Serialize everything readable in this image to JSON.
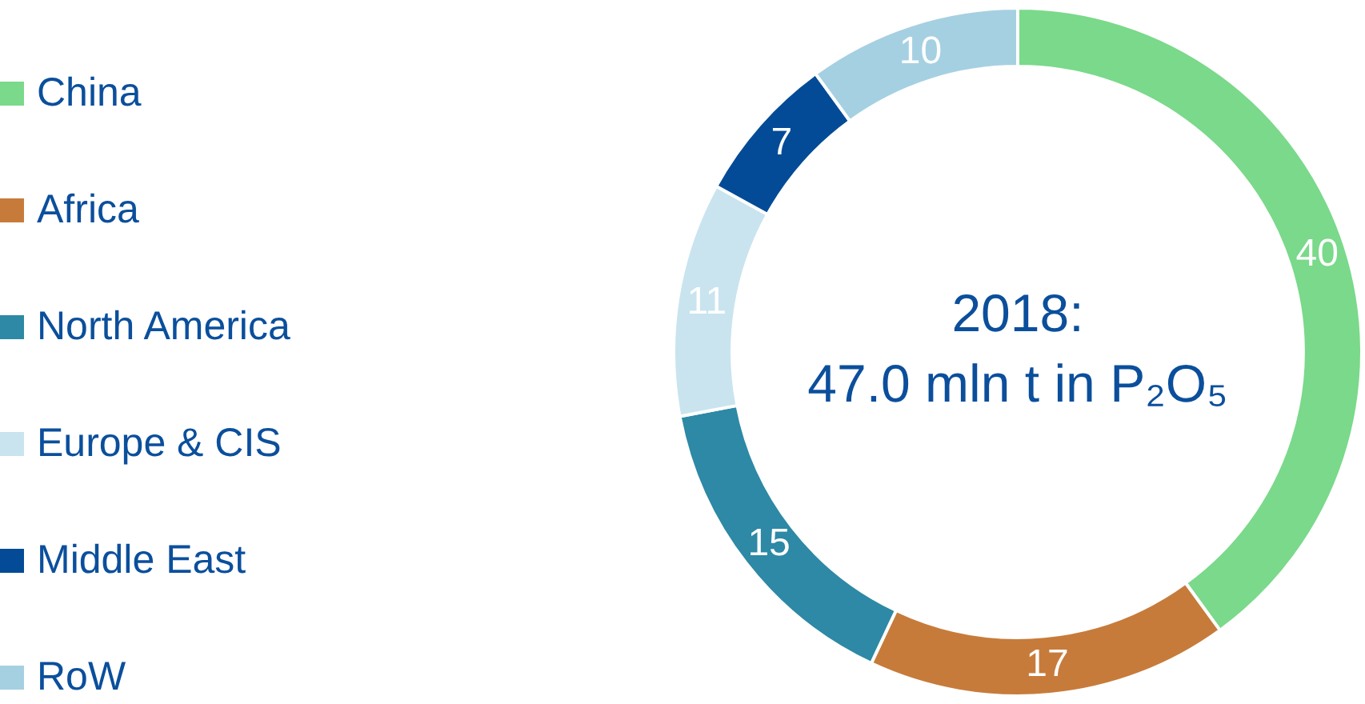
{
  "chart_data": {
    "type": "donut",
    "categories": [
      "China",
      "Africa",
      "North America",
      "Europe & CIS",
      "Middle East",
      "RoW"
    ],
    "values": [
      40,
      17,
      15,
      11,
      7,
      10
    ],
    "colors": [
      "#7ad98a",
      "#c77b3a",
      "#2d89a5",
      "#c9e4ef",
      "#034b97",
      "#a5d0e2"
    ],
    "legend": "left",
    "data_labels": true,
    "annotations": [
      "2018:",
      "47.0 mln t in P₂O₅"
    ]
  }
}
